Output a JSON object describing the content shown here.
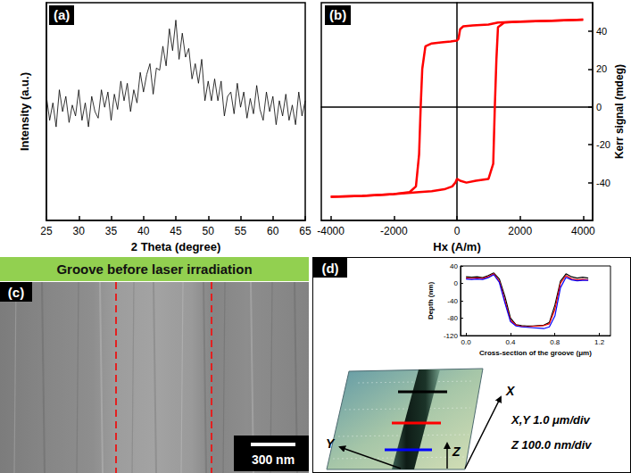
{
  "chart_data": [
    {
      "type": "line",
      "title": "(a)",
      "x_label": "2 Theta (degree)",
      "y_label": "Intensity (a.u.)",
      "x": [
        25,
        25.5,
        26,
        26.5,
        27,
        27.5,
        28,
        28.5,
        29,
        29.5,
        30,
        30.5,
        31,
        31.5,
        32,
        32.5,
        33,
        33.5,
        34,
        34.5,
        35,
        35.5,
        36,
        36.5,
        37,
        37.5,
        38,
        38.5,
        39,
        39.5,
        40,
        40.5,
        41,
        41.5,
        42,
        42.5,
        43,
        43.5,
        44,
        44.5,
        45,
        45.5,
        46,
        46.5,
        47,
        47.5,
        48,
        48.5,
        49,
        49.5,
        50,
        50.5,
        51,
        51.5,
        52,
        52.5,
        53,
        53.5,
        54,
        54.5,
        55,
        55.5,
        56,
        56.5,
        57,
        57.5,
        58,
        58.5,
        59,
        59.5,
        60,
        60.5,
        61,
        61.5,
        62,
        62.5,
        63,
        63.5,
        64,
        64.5,
        65
      ],
      "values": [
        57,
        46,
        54,
        43,
        60,
        50,
        57,
        45,
        53,
        48,
        60,
        46,
        54,
        43,
        57,
        50,
        47,
        60,
        52,
        59,
        46,
        58,
        51,
        64,
        55,
        63,
        50,
        60,
        54,
        68,
        59,
        67,
        72,
        58,
        70,
        69,
        80,
        71,
        88,
        78,
        92,
        74,
        86,
        75,
        79,
        65,
        72,
        63,
        74,
        55,
        64,
        55,
        65,
        55,
        64,
        48,
        57,
        59,
        49,
        63,
        52,
        59,
        47,
        56,
        49,
        62,
        51,
        46,
        59,
        50,
        57,
        44,
        55,
        48,
        58,
        46,
        53,
        44,
        59,
        48,
        55
      ],
      "color": "#000000",
      "xlim": [
        25,
        65
      ],
      "xticks": [
        25,
        30,
        35,
        40,
        45,
        50,
        55,
        60,
        65
      ],
      "ylim": [
        0,
        100
      ],
      "tick_labels": "x"
    },
    {
      "type": "line",
      "title": "(b)",
      "x_label": "Hx (A/m)",
      "y_label": "Kerr signal (mdeg)",
      "series": [
        {
          "color": "#ff0000",
          "x": [
            4000,
            3000,
            2000,
            1300,
            1000,
            500,
            200,
            100,
            50,
            0,
            -200,
            -500,
            -800,
            -1000,
            -1100,
            -1150,
            -1200,
            -1300,
            -1500,
            -2000,
            -3000,
            -4000
          ],
          "values": [
            46,
            45.5,
            45,
            44.5,
            43.5,
            43,
            42.5,
            41,
            36,
            35,
            34.5,
            34,
            33.5,
            32,
            20,
            0,
            -25,
            -42,
            -45,
            -46,
            -47,
            -47.5
          ]
        },
        {
          "color": "#ff0000",
          "x": [
            -4000,
            -3000,
            -2000,
            -1200,
            -800,
            -400,
            -150,
            -50,
            0,
            100,
            300,
            600,
            1000,
            1150,
            1200,
            1250,
            1300,
            1500,
            2000,
            3000,
            4000
          ],
          "values": [
            -47.5,
            -47,
            -46,
            -45,
            -44.5,
            -43.5,
            -42,
            -40,
            -38,
            -39,
            -40,
            -39,
            -38,
            -30,
            0,
            25,
            42,
            44.5,
            45,
            45.5,
            46
          ]
        }
      ],
      "xlim": [
        -4300,
        4300
      ],
      "xticks": [
        -4000,
        -2000,
        0,
        2000,
        4000
      ],
      "ylim": [
        -60,
        55
      ],
      "yticks": [
        -40,
        -20,
        0,
        20,
        40
      ]
    },
    {
      "type": "line",
      "x_label": "Cross-section of the groove (μm)",
      "y_label": "Depth (nm)",
      "x": [
        0,
        0.05,
        0.1,
        0.15,
        0.2,
        0.25,
        0.3,
        0.35,
        0.4,
        0.45,
        0.5,
        0.55,
        0.6,
        0.65,
        0.7,
        0.75,
        0.8,
        0.85,
        0.9,
        0.95,
        1.0,
        1.05,
        1.1
      ],
      "series": [
        {
          "color": "#000000",
          "values": [
            15,
            14,
            15,
            13,
            18,
            24,
            10,
            -30,
            -80,
            -95,
            -97,
            -98,
            -98,
            -97,
            -96,
            -90,
            -50,
            5,
            22,
            15,
            12,
            14,
            12
          ]
        },
        {
          "color": "#ff0000",
          "values": [
            12,
            11,
            12,
            11,
            15,
            22,
            5,
            -40,
            -85,
            -96,
            -99,
            -100,
            -99,
            -98,
            -97,
            -93,
            -60,
            0,
            18,
            10,
            8,
            9,
            8
          ]
        },
        {
          "color": "#0000ff",
          "values": [
            10,
            9,
            10,
            9,
            13,
            20,
            2,
            -45,
            -88,
            -98,
            -100,
            -101,
            -102,
            -103,
            -104,
            -100,
            -75,
            -10,
            14,
            8,
            6,
            7,
            7
          ]
        }
      ],
      "xlim": [
        -0.05,
        1.3
      ],
      "xticks": [
        {
          "value": 0,
          "label": "0.0"
        },
        0.4,
        0.8,
        1.2
      ],
      "ylim": [
        -120,
        40
      ],
      "yticks": [
        -120,
        -80,
        -40,
        0,
        40
      ]
    }
  ],
  "sem_image": {
    "title": "(c)",
    "banner": "Groove before laser irradiation",
    "scale_bar": "300 nm"
  },
  "afm_image": {
    "title": "(d)",
    "axes": [
      "X",
      "Y",
      "Z"
    ],
    "scale_xy": "X,Y 1.0 μm/div",
    "scale_z": "Z 100.0 nm/div"
  }
}
